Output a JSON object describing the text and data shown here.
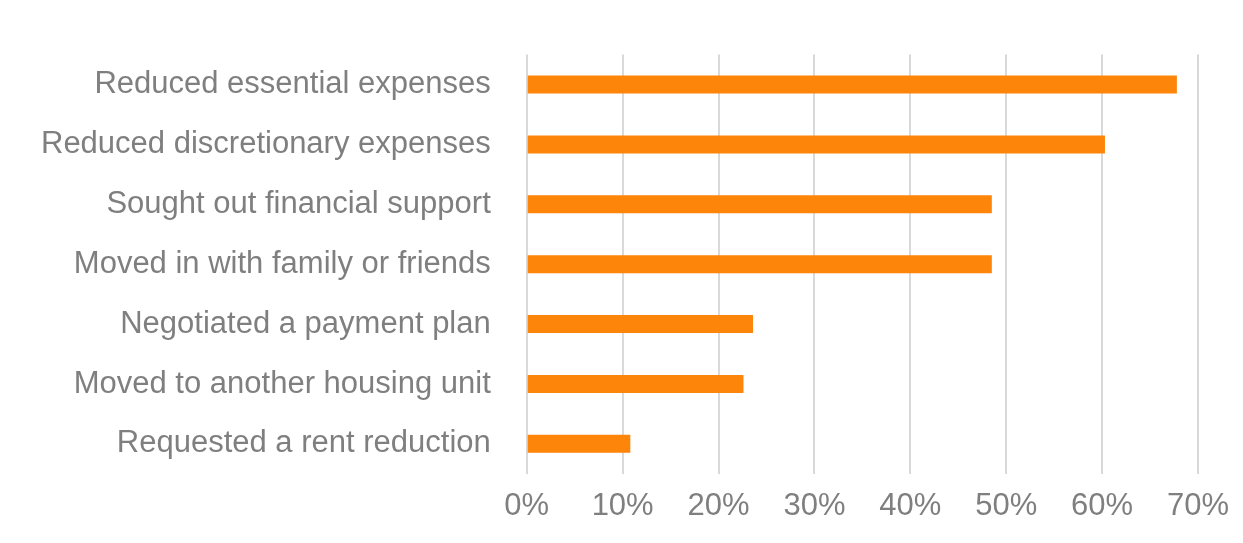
{
  "chart_data": {
    "type": "bar",
    "orientation": "horizontal",
    "categories": [
      "Reduced essential expenses",
      "Reduced discretionary expenses",
      "Sought out financial support",
      "Moved in with family or friends",
      "Negotiated a payment plan",
      "Moved to another housing unit",
      "Requested a rent reduction"
    ],
    "values": [
      67.8,
      60.3,
      48.5,
      48.5,
      23.6,
      22.6,
      10.8
    ],
    "color": "#fd8509",
    "xlim": [
      0,
      70
    ],
    "xticks": [
      {
        "value": 0,
        "label": "0%"
      },
      {
        "value": 10,
        "label": "10%"
      },
      {
        "value": 20,
        "label": "20%"
      },
      {
        "value": 30,
        "label": "30%"
      },
      {
        "value": 40,
        "label": "40%"
      },
      {
        "value": 50,
        "label": "50%"
      },
      {
        "value": 60,
        "label": "60%"
      },
      {
        "value": 70,
        "label": "70%"
      }
    ],
    "grid": "x",
    "legend": false
  }
}
